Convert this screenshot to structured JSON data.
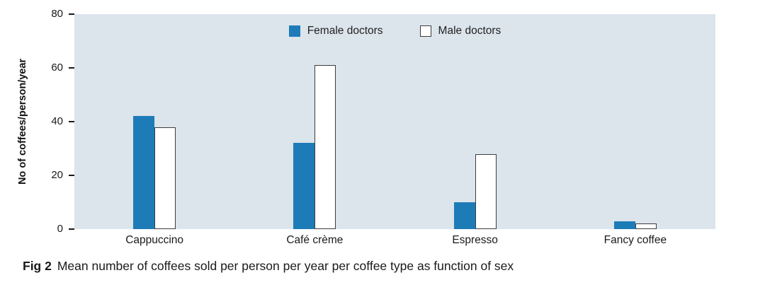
{
  "chart_data": {
    "type": "bar",
    "title": "",
    "ylabel": "No of coffees/person/year",
    "xlabel": "",
    "categories": [
      "Cappuccino",
      "Café crème",
      "Espresso",
      "Fancy coffee"
    ],
    "series": [
      {
        "name": "Female doctors",
        "values": [
          42,
          32,
          10,
          3
        ],
        "color": "#1d7cb8",
        "border": "#1d7cb8"
      },
      {
        "name": "Male doctors",
        "values": [
          38,
          61,
          28,
          2
        ],
        "color": "#ffffff",
        "border": "#3d3d3d"
      }
    ],
    "ylim": [
      0,
      80
    ],
    "yticks": [
      0,
      20,
      40,
      60,
      80
    ],
    "grid": false,
    "legend_position": "top-center",
    "plot_bg": "#dce4ec"
  },
  "caption": {
    "label": "Fig 2",
    "text": "Mean number of coffees sold per person per year per coffee type as function of sex"
  }
}
